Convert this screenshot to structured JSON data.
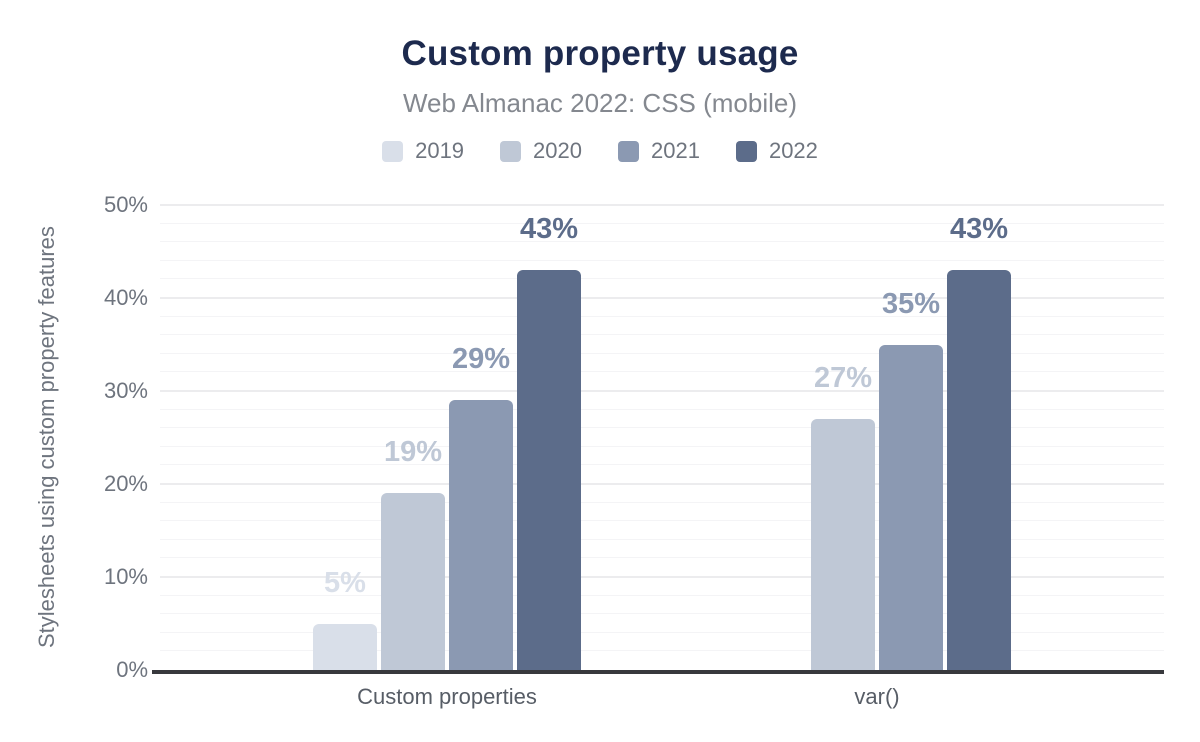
{
  "header": {
    "title": "Custom property usage",
    "subtitle": "Web Almanac 2022: CSS (mobile)"
  },
  "chart_data": {
    "type": "bar",
    "title": "Custom property usage",
    "subtitle": "Web Almanac 2022: CSS (mobile)",
    "categories": [
      "Custom properties",
      "var()"
    ],
    "series": [
      {
        "name": "2019",
        "color": "#d9dfe9",
        "values": [
          5,
          null
        ],
        "labels": [
          "5%",
          null
        ]
      },
      {
        "name": "2020",
        "color": "#bfc8d6",
        "values": [
          19,
          27
        ],
        "labels": [
          "19%",
          "27%"
        ]
      },
      {
        "name": "2021",
        "color": "#8b99b2",
        "values": [
          29,
          35
        ],
        "labels": [
          "29%",
          "35%"
        ]
      },
      {
        "name": "2022",
        "color": "#5c6c8a",
        "values": [
          43,
          43
        ],
        "labels": [
          "43%",
          "43%"
        ]
      }
    ],
    "xlabel": "",
    "ylabel": "Stylesheets using custom property features",
    "ylim": [
      0,
      50
    ],
    "yticks": [
      "0%",
      "10%",
      "20%",
      "30%",
      "40%",
      "50%"
    ],
    "minor_grid_step_pct": 2,
    "grid": true,
    "legend_position": "top",
    "colors": {
      "title": "#1d2a4e",
      "subtitle": "#84888f",
      "axis_text": "#6e747e",
      "category_text": "#575d66",
      "gridline_major": "#ececee",
      "gridline_minor": "#f4f4f6",
      "baseline": "#38393d",
      "background": "#ffffff"
    }
  }
}
